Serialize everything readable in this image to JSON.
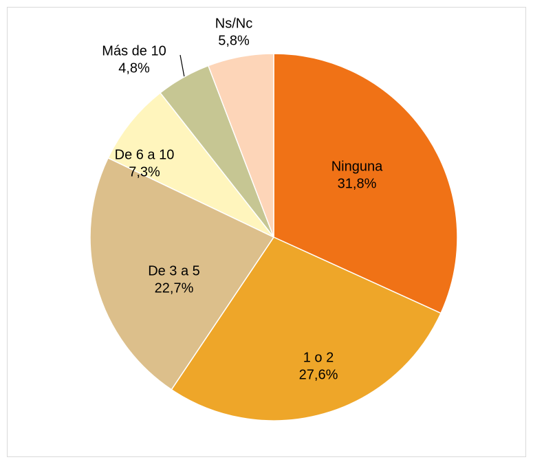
{
  "chart_data": {
    "type": "pie",
    "categories": [
      "Ninguna",
      "1 o 2",
      "De 3 a 5",
      "De 6 a 10",
      "Más de 10",
      "Ns/Nc"
    ],
    "values": [
      31.8,
      27.6,
      22.7,
      7.3,
      4.8,
      5.8
    ],
    "value_labels": [
      "31,8%",
      "27,6%",
      "22,7%",
      "7,3%",
      "4,8%",
      "5,8%"
    ],
    "colors": [
      "#f07216",
      "#eea629",
      "#dcbf8b",
      "#fff5bd",
      "#c6c693",
      "#fdd5b8"
    ]
  }
}
